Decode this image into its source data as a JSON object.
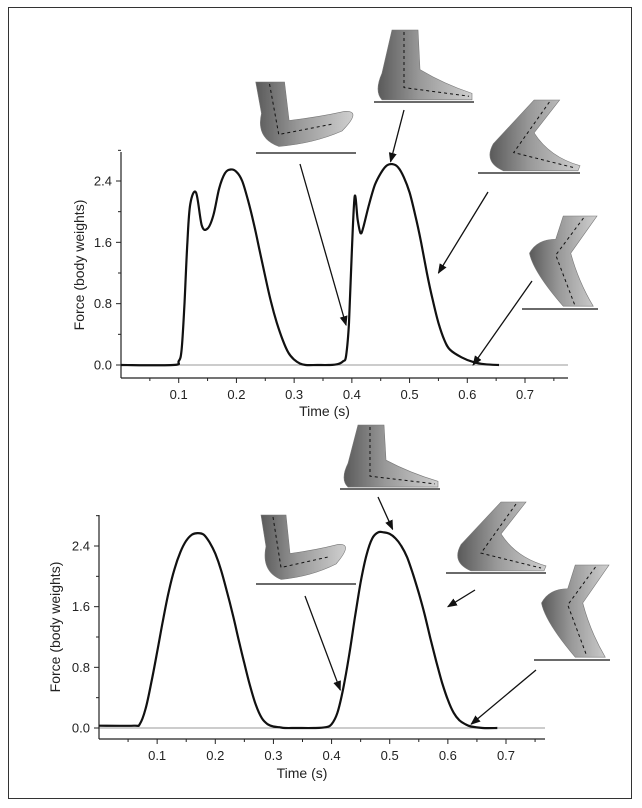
{
  "chart_data": [
    {
      "type": "line",
      "xlabel": "Time (s)",
      "ylabel": "Force (body weights)",
      "xlim": [
        0.0,
        0.76
      ],
      "ylim": [
        -0.1,
        2.8
      ],
      "xticks": [
        "0.1",
        "0.2",
        "0.3",
        "0.4",
        "0.5",
        "0.6",
        "0.7"
      ],
      "yticks": [
        "0.0",
        "0.8",
        "1.6",
        "2.4"
      ],
      "series": [
        {
          "color": "#111111",
          "x": [
            0.0,
            0.09,
            0.1,
            0.105,
            0.11,
            0.115,
            0.12,
            0.13,
            0.14,
            0.15,
            0.16,
            0.17,
            0.18,
            0.19,
            0.2,
            0.21,
            0.22,
            0.23,
            0.24,
            0.25,
            0.26,
            0.27,
            0.28,
            0.29,
            0.3,
            0.31,
            0.32,
            0.34,
            0.36,
            0.375,
            0.385,
            0.39,
            0.395,
            0.4,
            0.405,
            0.41,
            0.415,
            0.42,
            0.43,
            0.44,
            0.45,
            0.46,
            0.47,
            0.48,
            0.49,
            0.5,
            0.51,
            0.52,
            0.53,
            0.54,
            0.55,
            0.56,
            0.57,
            0.59,
            0.61,
            0.63,
            0.655
          ],
          "y": [
            0.0,
            0.0,
            0.05,
            0.2,
            0.8,
            1.6,
            2.1,
            2.25,
            1.82,
            1.78,
            1.95,
            2.3,
            2.5,
            2.55,
            2.52,
            2.4,
            2.15,
            1.85,
            1.5,
            1.15,
            0.82,
            0.55,
            0.33,
            0.16,
            0.07,
            0.02,
            0.0,
            0.0,
            0.0,
            0.01,
            0.05,
            0.12,
            0.55,
            1.5,
            2.2,
            1.9,
            1.72,
            1.8,
            2.1,
            2.35,
            2.5,
            2.6,
            2.62,
            2.58,
            2.45,
            2.25,
            1.95,
            1.6,
            1.2,
            0.85,
            0.55,
            0.33,
            0.2,
            0.1,
            0.04,
            0.01,
            0.0
          ]
        }
      ],
      "annotations": [
        {
          "x": 0.39,
          "y": 0.52
        },
        {
          "x": 0.467,
          "y": 2.65
        },
        {
          "x": 0.55,
          "y": 1.2
        },
        {
          "x": 0.61,
          "y": 0.0
        }
      ]
    },
    {
      "type": "line",
      "xlabel": "Time (s)",
      "ylabel": "Force (body weights)",
      "xlim": [
        0.0,
        0.76
      ],
      "ylim": [
        -0.1,
        2.8
      ],
      "xticks": [
        "0.1",
        "0.2",
        "0.3",
        "0.4",
        "0.5",
        "0.6",
        "0.7"
      ],
      "yticks": [
        "0.0",
        "0.8",
        "1.6",
        "2.4"
      ],
      "series": [
        {
          "color": "#111111",
          "x": [
            0.0,
            0.06,
            0.07,
            0.08,
            0.09,
            0.1,
            0.11,
            0.12,
            0.13,
            0.14,
            0.15,
            0.16,
            0.17,
            0.18,
            0.19,
            0.2,
            0.21,
            0.22,
            0.23,
            0.24,
            0.25,
            0.26,
            0.27,
            0.28,
            0.29,
            0.3,
            0.31,
            0.32,
            0.34,
            0.37,
            0.39,
            0.4,
            0.41,
            0.42,
            0.43,
            0.44,
            0.45,
            0.46,
            0.47,
            0.48,
            0.49,
            0.5,
            0.51,
            0.52,
            0.53,
            0.54,
            0.55,
            0.56,
            0.57,
            0.58,
            0.59,
            0.6,
            0.61,
            0.62,
            0.63,
            0.64,
            0.66,
            0.685
          ],
          "y": [
            0.03,
            0.03,
            0.05,
            0.25,
            0.6,
            1.0,
            1.42,
            1.8,
            2.1,
            2.32,
            2.47,
            2.55,
            2.57,
            2.55,
            2.45,
            2.3,
            2.08,
            1.8,
            1.5,
            1.17,
            0.85,
            0.55,
            0.3,
            0.13,
            0.05,
            0.02,
            0.01,
            0.0,
            0.0,
            0.0,
            0.01,
            0.05,
            0.2,
            0.52,
            0.95,
            1.45,
            1.92,
            2.28,
            2.5,
            2.58,
            2.58,
            2.56,
            2.5,
            2.4,
            2.25,
            2.03,
            1.78,
            1.5,
            1.18,
            0.88,
            0.6,
            0.37,
            0.2,
            0.1,
            0.05,
            0.02,
            0.0,
            0.0
          ]
        }
      ],
      "annotations": [
        {
          "x": 0.415,
          "y": 0.5
        },
        {
          "x": 0.505,
          "y": 2.62
        },
        {
          "x": 0.6,
          "y": 1.6
        },
        {
          "x": 0.64,
          "y": 0.05
        }
      ]
    }
  ]
}
